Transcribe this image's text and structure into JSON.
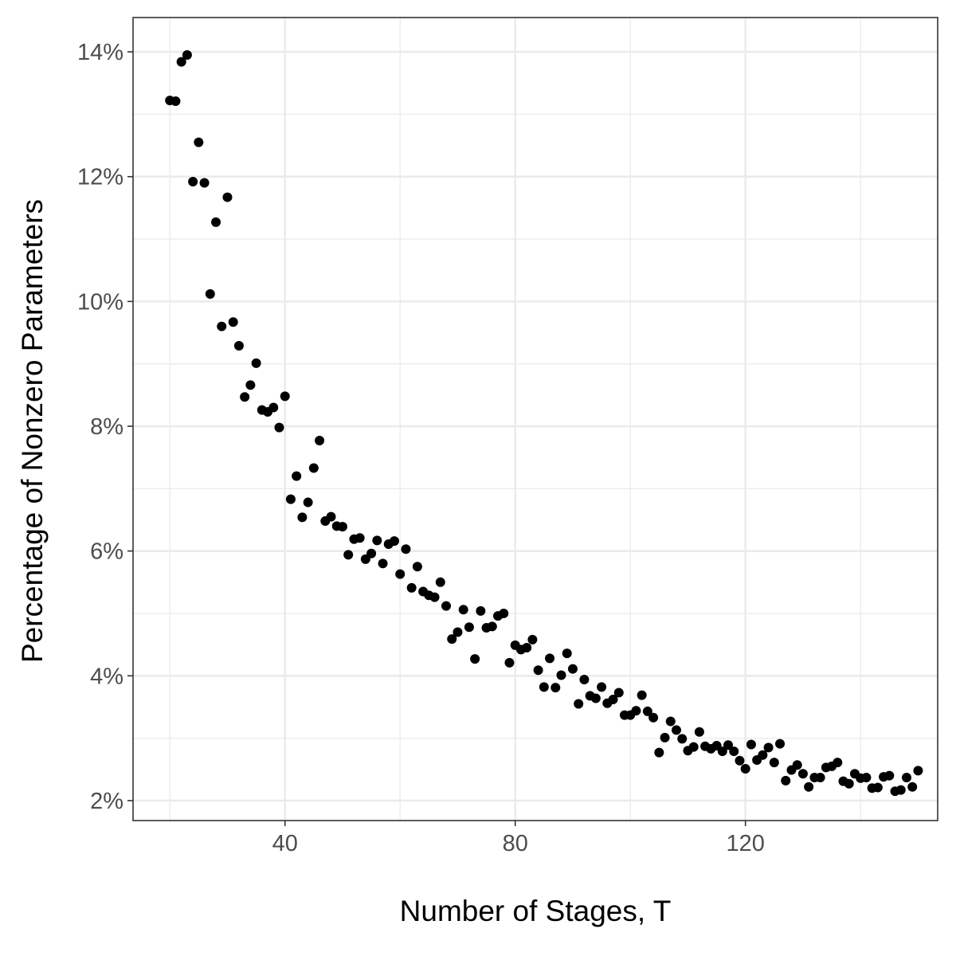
{
  "chart_data": {
    "type": "scatter",
    "xlabel": "Number of Stages, T",
    "ylabel": "Percentage of Nonzero Parameters",
    "xlim": [
      13.6,
      153.4
    ],
    "ylim": [
      1.68,
      14.55
    ],
    "x_ticks": [
      40,
      80,
      120
    ],
    "x_tick_labels": [
      "40",
      "80",
      "120"
    ],
    "x_minor_ticks": [
      20,
      60,
      100,
      140
    ],
    "y_ticks": [
      2,
      4,
      6,
      8,
      10,
      12,
      14
    ],
    "y_tick_labels": [
      "2%",
      "4%",
      "6%",
      "8%",
      "10%",
      "12%",
      "14%"
    ],
    "y_minor_ticks": [
      3,
      5,
      7,
      9,
      11,
      13
    ],
    "grid": true,
    "legend": "none",
    "colors": {
      "point": "#000000",
      "grid_major": "#ebebeb",
      "grid_minor": "#ebebeb",
      "panel_border": "#333333",
      "tick_label": "#4d4d4d"
    },
    "series": [
      {
        "x": [
          20,
          21,
          22,
          23,
          24,
          25,
          26,
          27,
          28,
          29,
          30,
          31,
          32,
          33,
          34,
          35,
          36,
          37,
          38,
          39,
          40,
          41,
          42,
          43,
          44,
          45,
          46,
          47,
          48,
          49,
          50,
          51,
          52,
          53,
          54,
          55,
          56,
          57,
          58,
          59,
          60,
          61,
          62,
          63,
          64,
          65,
          66,
          67,
          68,
          69,
          70,
          71,
          72,
          73,
          74,
          75,
          76,
          77,
          78,
          79,
          80,
          81,
          82,
          83,
          84,
          85,
          86,
          87,
          88,
          89,
          90,
          91,
          92,
          93,
          94,
          95,
          96,
          97,
          98,
          99,
          100,
          101,
          102,
          103,
          104,
          105,
          106,
          107,
          108,
          109,
          110,
          111,
          112,
          113,
          114,
          115,
          116,
          117,
          118,
          119,
          120,
          121,
          122,
          123,
          124,
          125,
          126,
          127,
          128,
          129,
          130,
          131,
          132,
          133,
          134,
          135,
          136,
          137,
          138,
          139,
          140,
          141,
          142,
          143,
          144,
          145,
          146,
          147,
          148,
          149,
          150
        ],
        "y": [
          13.22,
          13.21,
          13.84,
          13.95,
          11.92,
          12.55,
          11.9,
          10.12,
          11.27,
          9.6,
          11.67,
          9.67,
          9.29,
          8.47,
          8.66,
          9.01,
          8.26,
          8.23,
          8.3,
          7.98,
          8.48,
          6.83,
          7.2,
          6.54,
          6.78,
          7.33,
          7.77,
          6.48,
          6.55,
          6.4,
          6.39,
          5.94,
          6.19,
          6.21,
          5.87,
          5.96,
          6.17,
          5.8,
          6.11,
          6.16,
          5.63,
          6.03,
          5.41,
          5.75,
          5.35,
          5.29,
          5.26,
          5.5,
          5.12,
          4.59,
          4.7,
          5.06,
          4.78,
          4.27,
          5.04,
          4.77,
          4.79,
          4.96,
          5.0,
          4.21,
          4.49,
          4.42,
          4.45,
          4.58,
          4.09,
          3.82,
          4.28,
          3.81,
          4.01,
          4.36,
          4.11,
          3.55,
          3.94,
          3.68,
          3.64,
          3.82,
          3.56,
          3.62,
          3.73,
          3.37,
          3.37,
          3.44,
          3.69,
          3.43,
          3.33,
          2.77,
          3.01,
          3.27,
          3.13,
          2.99,
          2.8,
          2.86,
          3.1,
          2.87,
          2.83,
          2.88,
          2.79,
          2.89,
          2.79,
          2.64,
          2.51,
          2.9,
          2.65,
          2.73,
          2.85,
          2.61,
          2.91,
          2.32,
          2.49,
          2.57,
          2.43,
          2.22,
          2.37,
          2.37,
          2.53,
          2.55,
          2.61,
          2.31,
          2.27,
          2.43,
          2.36,
          2.37,
          2.2,
          2.21,
          2.38,
          2.4,
          2.15,
          2.17,
          2.37,
          2.22,
          2.48
        ]
      }
    ]
  }
}
